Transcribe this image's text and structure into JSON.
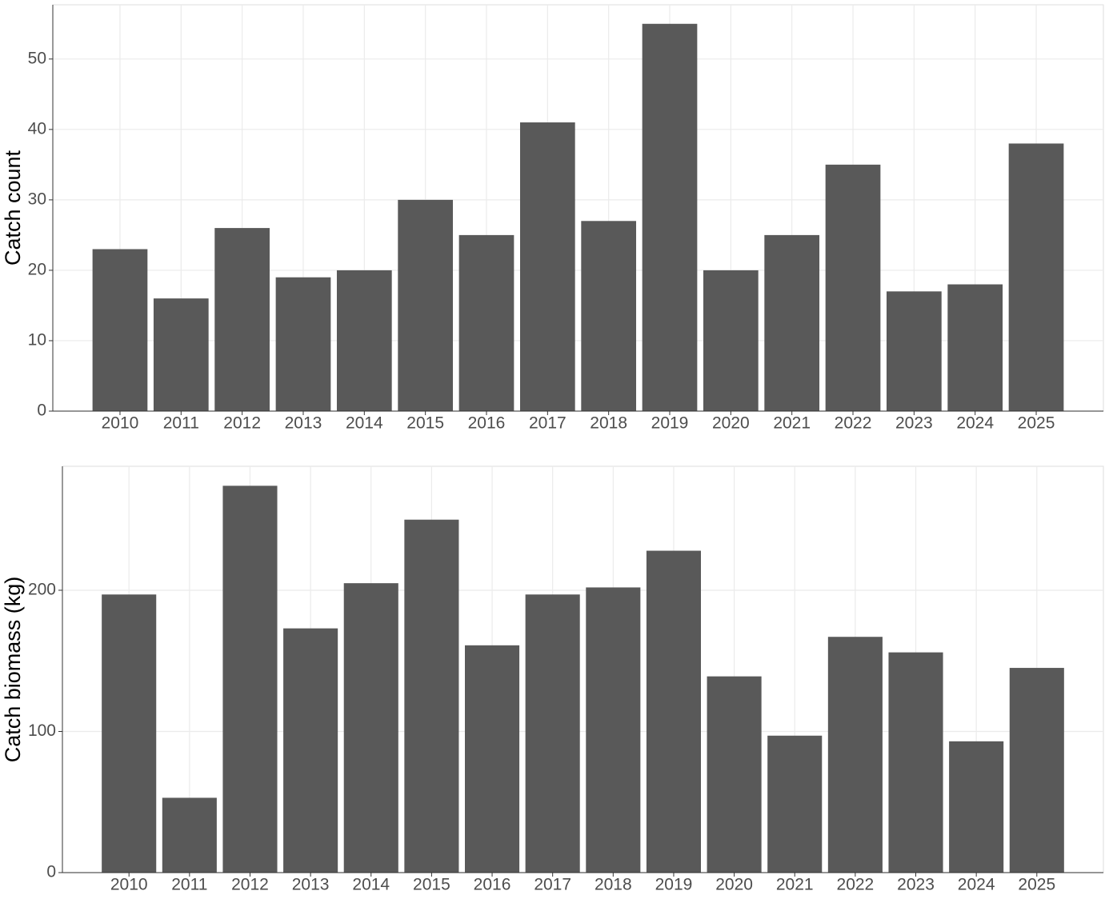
{
  "chart_data": [
    {
      "type": "bar",
      "y_label": "Catch count",
      "categories": [
        "2010",
        "2011",
        "2012",
        "2013",
        "2014",
        "2015",
        "2016",
        "2017",
        "2018",
        "2019",
        "2020",
        "2021",
        "2022",
        "2023",
        "2024",
        "2025"
      ],
      "values": [
        23,
        16,
        26,
        19,
        20,
        30,
        25,
        41,
        27,
        55,
        20,
        25,
        35,
        17,
        18,
        38
      ],
      "color": "#595959",
      "ylim": [
        0,
        57.7
      ],
      "yticks": [
        0,
        10,
        20,
        30,
        40,
        50
      ],
      "grid": true
    },
    {
      "type": "bar",
      "y_label": "Catch biomass (kg)",
      "categories": [
        "2010",
        "2011",
        "2012",
        "2013",
        "2014",
        "2015",
        "2016",
        "2017",
        "2018",
        "2019",
        "2020",
        "2021",
        "2022",
        "2023",
        "2024",
        "2025"
      ],
      "values": [
        197,
        53,
        274,
        173,
        205,
        250,
        161,
        197,
        202,
        228,
        139,
        97,
        167,
        156,
        93,
        145
      ],
      "color": "#595959",
      "ylim": [
        0,
        287.8
      ],
      "yticks": [
        0,
        100,
        200
      ],
      "grid": true
    }
  ]
}
